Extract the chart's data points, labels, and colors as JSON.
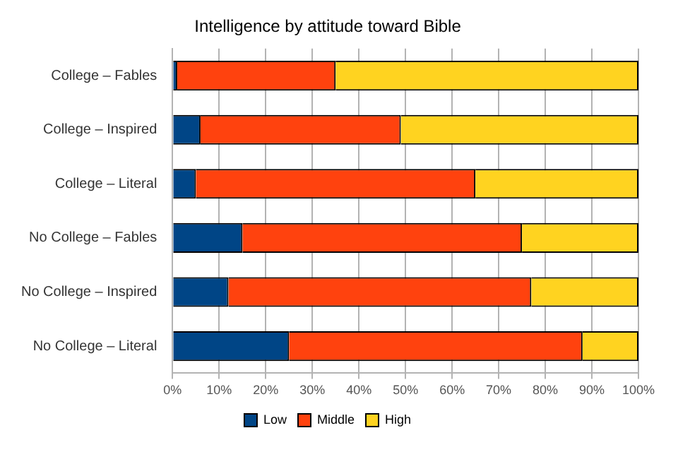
{
  "chart_data": {
    "type": "bar",
    "title": "Intelligence by attitude toward Bible",
    "orientation": "horizontal",
    "stacked": true,
    "categories": [
      "College – Fables",
      "College – Inspired",
      "College – Literal",
      "No College – Fables",
      "No College – Inspired",
      "No College – Literal"
    ],
    "series": [
      {
        "name": "Low",
        "color": "#004586",
        "values": [
          1,
          6,
          5,
          15,
          12,
          25
        ]
      },
      {
        "name": "Middle",
        "color": "#ff420e",
        "values": [
          34,
          43,
          60,
          60,
          65,
          63
        ]
      },
      {
        "name": "High",
        "color": "#ffd320",
        "values": [
          65,
          51,
          35,
          25,
          23,
          12
        ]
      }
    ],
    "xlim": [
      0,
      100
    ],
    "xticks": [
      {
        "value": 0,
        "label": "0%"
      },
      {
        "value": 10,
        "label": "10%"
      },
      {
        "value": 20,
        "label": "20%"
      },
      {
        "value": 30,
        "label": "30%"
      },
      {
        "value": 40,
        "label": "40%"
      },
      {
        "value": 50,
        "label": "50%"
      },
      {
        "value": 60,
        "label": "60%"
      },
      {
        "value": 70,
        "label": "70%"
      },
      {
        "value": 80,
        "label": "80%"
      },
      {
        "value": 90,
        "label": "90%"
      },
      {
        "value": 100,
        "label": "100%"
      }
    ],
    "grid": "x",
    "legend": "bottom"
  }
}
